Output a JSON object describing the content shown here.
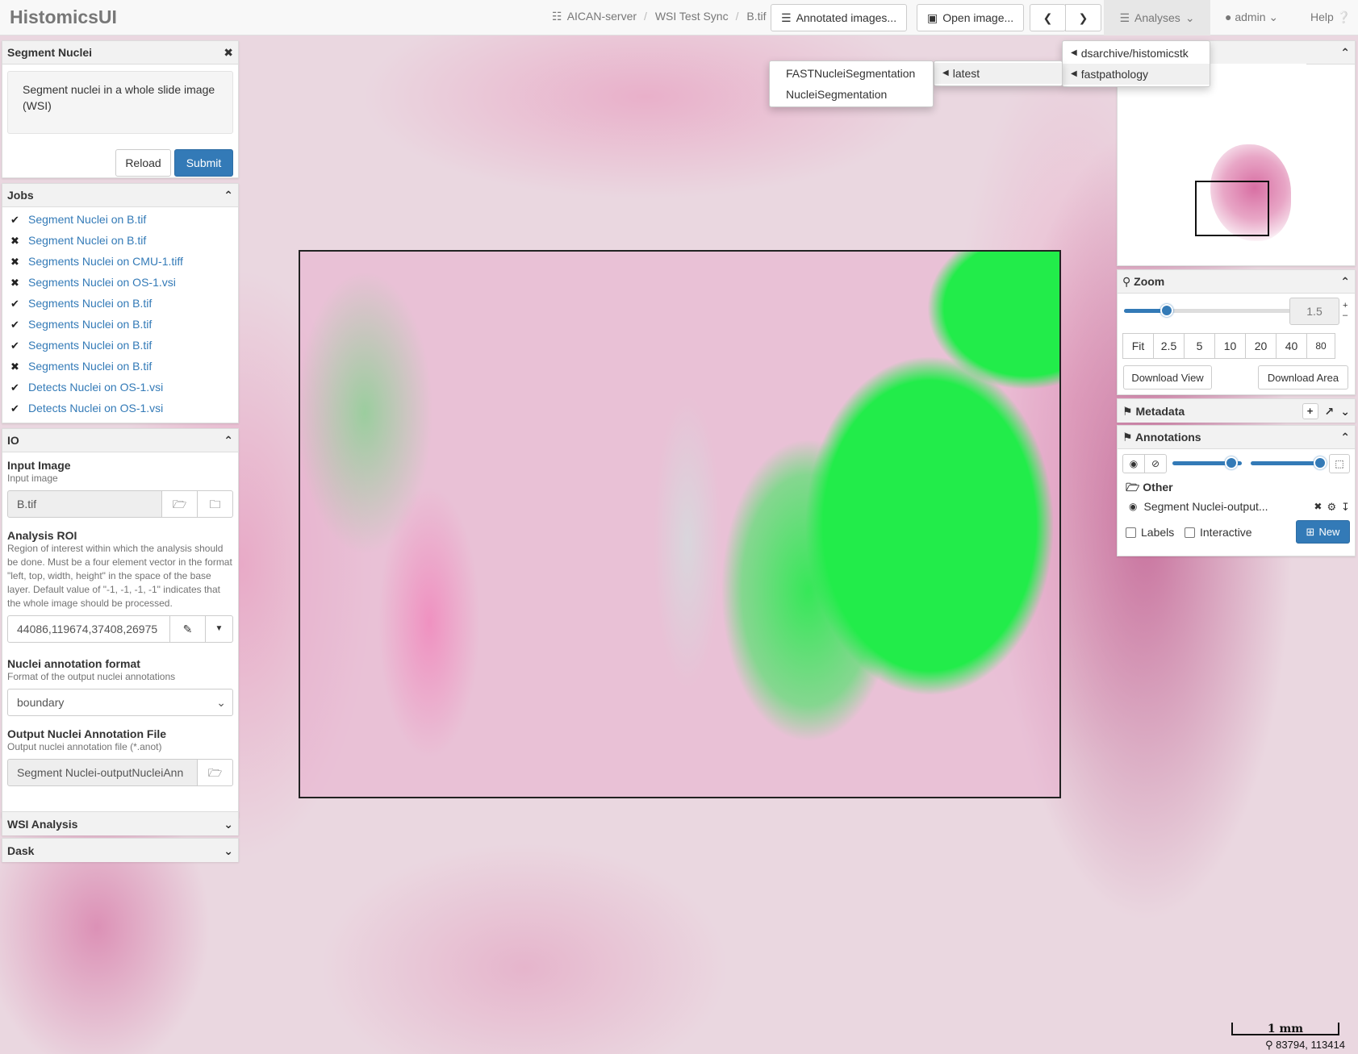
{
  "app": {
    "brand": "HistomicsUI"
  },
  "breadcrumb": [
    "AICAN-server",
    "WSI Test Sync",
    "B.tif"
  ],
  "nav": {
    "annotated_images": "Annotated images...",
    "open_image": "Open image...",
    "analyses": "Analyses",
    "user": "admin",
    "help": "Help"
  },
  "menus": {
    "level1": [
      "dsarchive/histomicstk",
      "fastpathology"
    ],
    "level2": [
      "latest"
    ],
    "level3": [
      "FASTNucleiSegmentation",
      "NucleiSegmentation"
    ]
  },
  "segment_panel": {
    "title": "Segment Nuclei",
    "description": "Segment nuclei in a whole slide image (WSI)",
    "reload_label": "Reload",
    "submit_label": "Submit"
  },
  "jobs": {
    "title": "Jobs",
    "items": [
      {
        "status": "success",
        "label": "Segment Nuclei on B.tif"
      },
      {
        "status": "failed",
        "label": "Segment Nuclei on B.tif"
      },
      {
        "status": "failed",
        "label": "Segments Nuclei on CMU-1.tiff"
      },
      {
        "status": "failed",
        "label": "Segments Nuclei on OS-1.vsi"
      },
      {
        "status": "success",
        "label": "Segments Nuclei on B.tif"
      },
      {
        "status": "success",
        "label": "Segments Nuclei on B.tif"
      },
      {
        "status": "success",
        "label": "Segments Nuclei on B.tif"
      },
      {
        "status": "failed",
        "label": "Segments Nuclei on B.tif"
      },
      {
        "status": "success",
        "label": "Detects Nuclei on OS-1.vsi"
      },
      {
        "status": "success",
        "label": "Detects Nuclei on OS-1.vsi"
      }
    ]
  },
  "io": {
    "title": "IO",
    "input_image": {
      "label": "Input Image",
      "hint": "Input image",
      "value": "B.tif"
    },
    "roi": {
      "label": "Analysis ROI",
      "hint": "Region of interest within which the analysis should be done. Must be a four element vector in the format \"left, top, width, height\" in the space of the base layer. Default value of \"-1, -1, -1, -1\" indicates that the whole image should be processed.",
      "value": "44086,119674,37408,26975"
    },
    "format": {
      "label": "Nuclei annotation format",
      "hint": "Format of the output nuclei annotations",
      "value": "boundary"
    },
    "output": {
      "label": "Output Nuclei Annotation File",
      "hint": "Output nuclei annotation file (*.anot)",
      "value": "Segment Nuclei-outputNucleiAnn"
    }
  },
  "sections": {
    "wsi_analysis": "WSI Analysis",
    "dask": "Dask"
  },
  "zoom": {
    "title": "Zoom",
    "value": "1.5",
    "level_fraction": 0.25,
    "presets": [
      "Fit",
      "2.5",
      "5",
      "10",
      "20",
      "40",
      "80"
    ],
    "download_view": "Download View",
    "download_area": "Download Area"
  },
  "metadata": {
    "title": "Metadata"
  },
  "annotations": {
    "title": "Annotations",
    "opacity_fraction": 0.85,
    "fill_opacity_fraction": 1.0,
    "group": "Other",
    "item": "Segment Nuclei-output...",
    "labels": "Labels",
    "interactive": "Interactive",
    "new": "New"
  },
  "viewer": {
    "scale_label": "1 mm",
    "coords": "83794, 113414"
  },
  "colors": {
    "primary": "#337ab7",
    "annotation": "#22ec4a"
  }
}
